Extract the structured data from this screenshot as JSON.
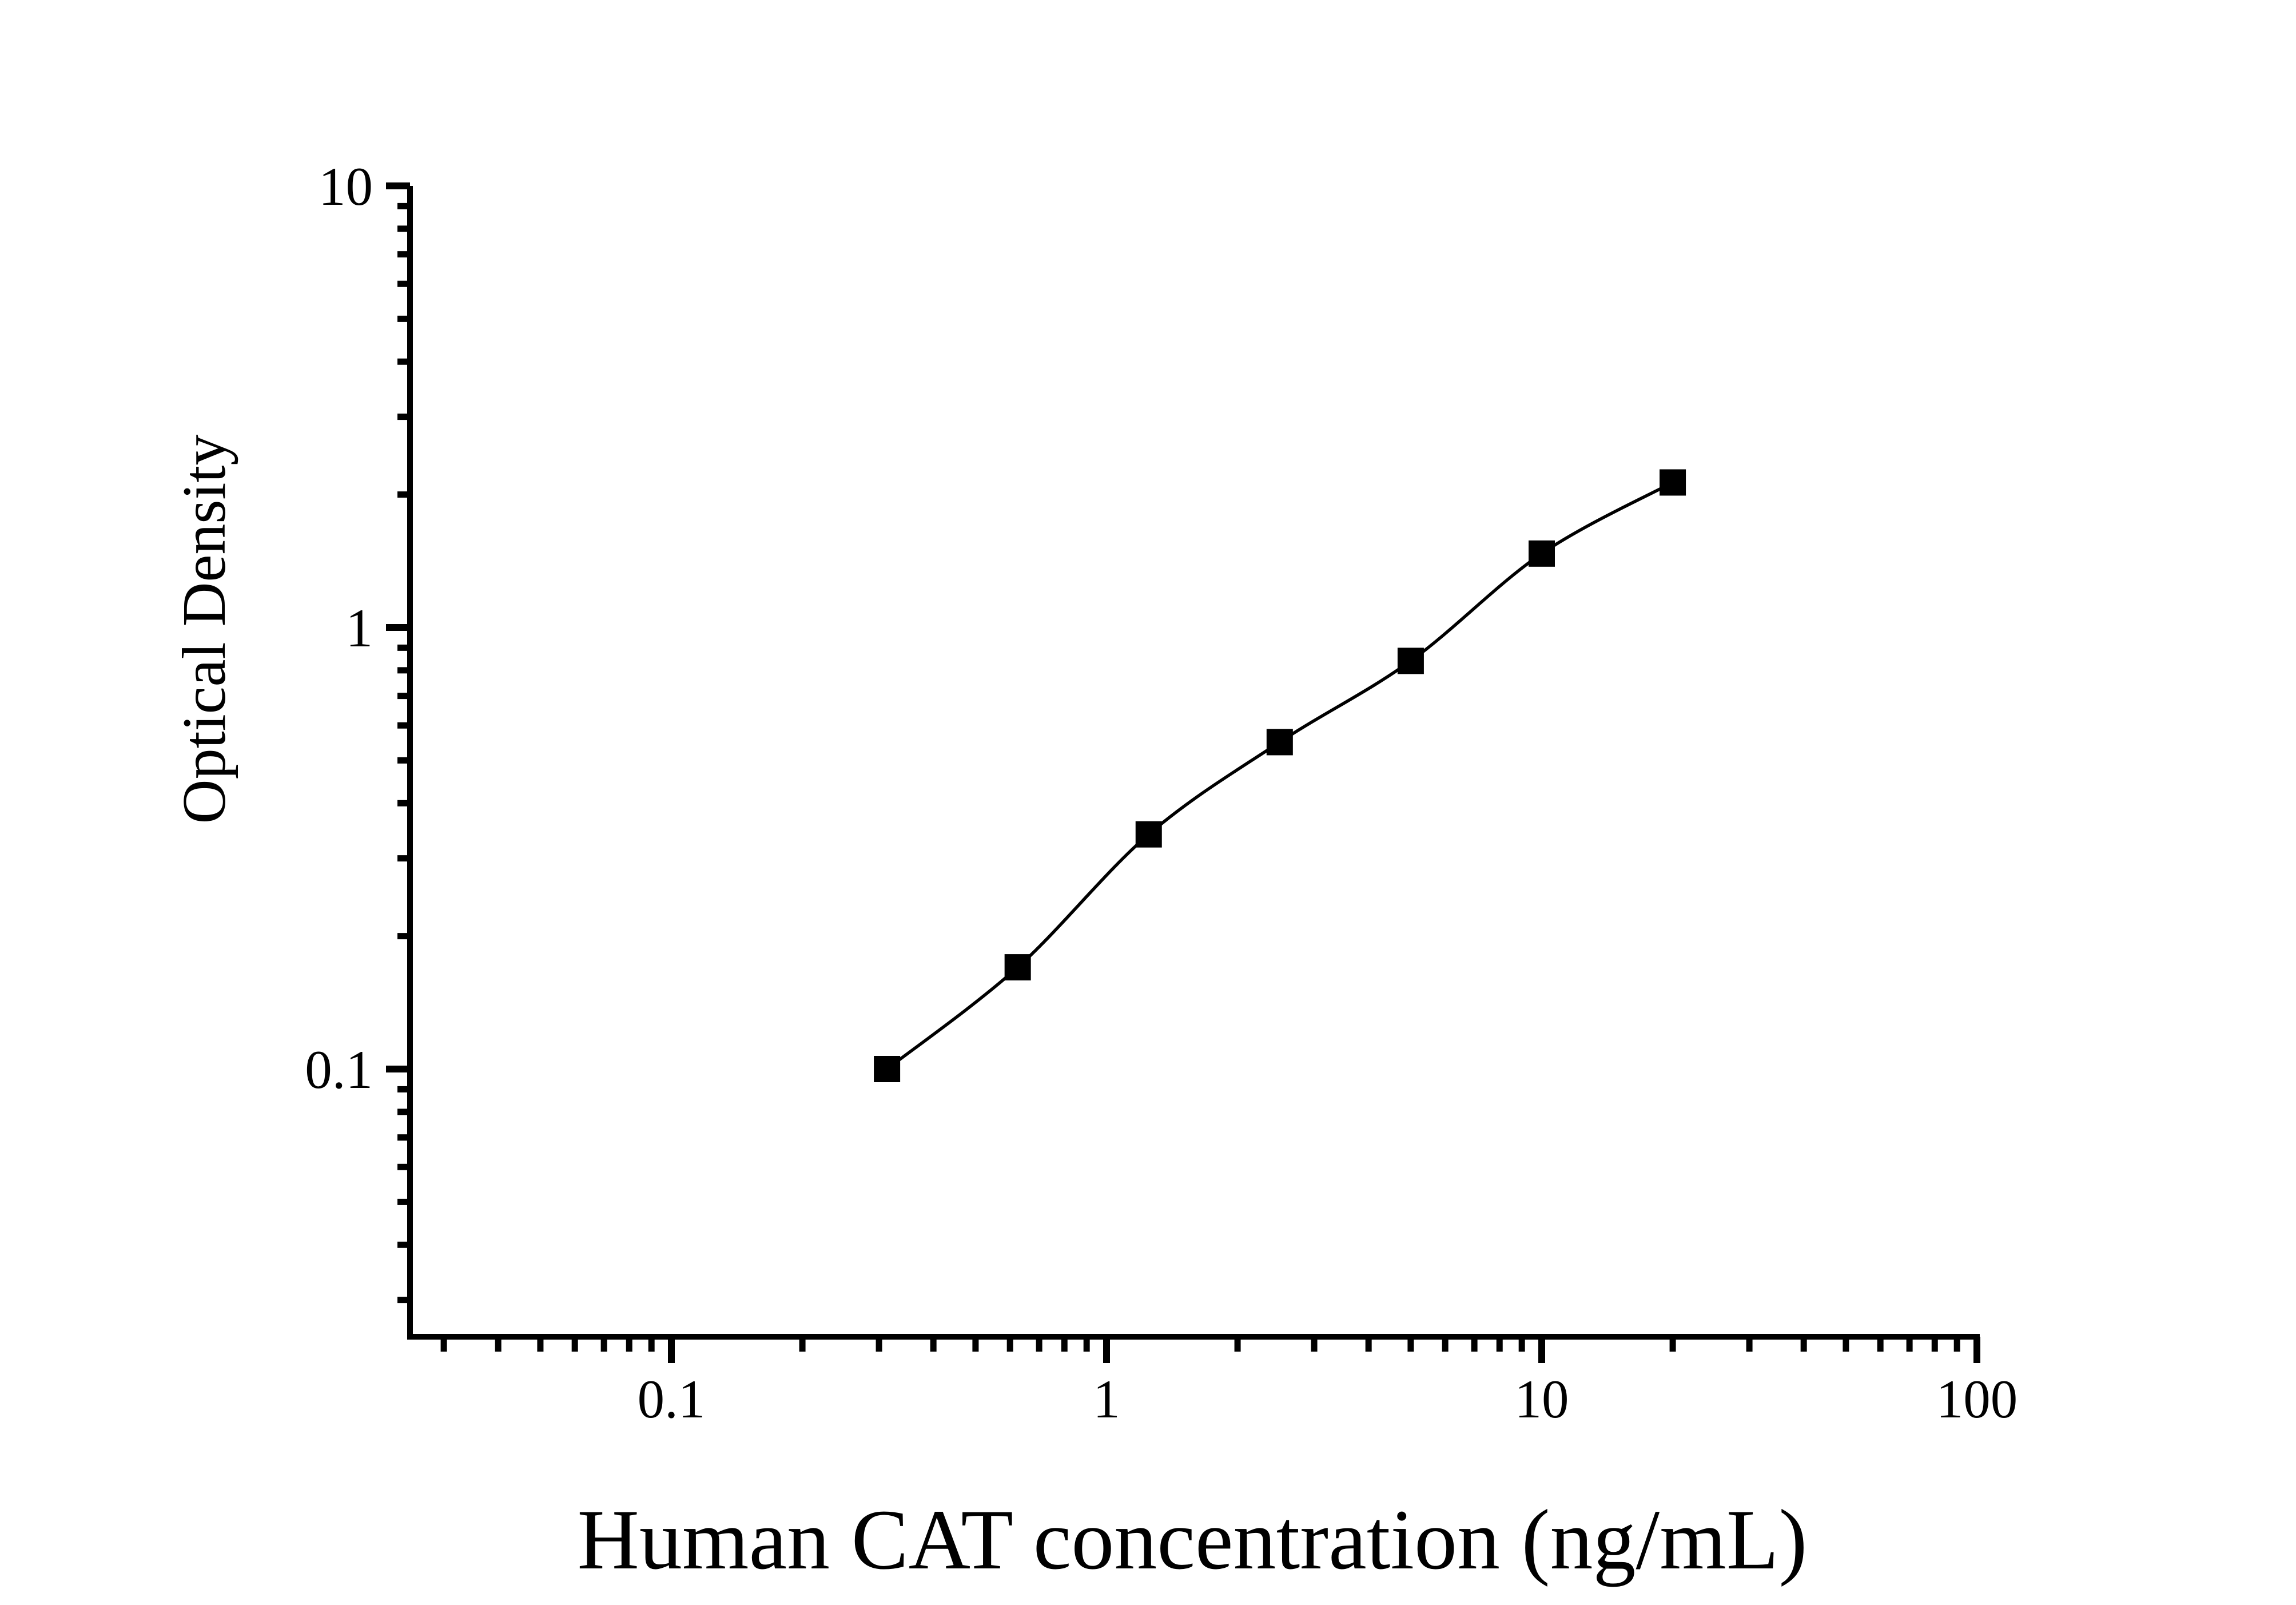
{
  "figure": {
    "background_color": "#ffffff",
    "foreground_color": "#000000"
  },
  "chart_data": {
    "type": "scatter",
    "title": "",
    "xlabel": "Human CAT concentration (ng/mL)",
    "ylabel": "Optical Density",
    "x_scale": "log",
    "y_scale": "log",
    "xlim": [
      0.025,
      100
    ],
    "ylim": [
      0.025,
      10
    ],
    "grid": false,
    "legend": "none",
    "marker": "filled-square",
    "marker_color": "#000000",
    "line_style": "smooth-fit-curve",
    "line_color": "#000000",
    "x_major_ticks": [
      {
        "value": 0.1,
        "label": "0.1"
      },
      {
        "value": 1,
        "label": "1"
      },
      {
        "value": 10,
        "label": "10"
      },
      {
        "value": 100,
        "label": "100"
      }
    ],
    "y_major_ticks": [
      {
        "value": 0.1,
        "label": "0.1"
      },
      {
        "value": 1,
        "label": "1"
      },
      {
        "value": 10,
        "label": "10"
      }
    ],
    "minor_ticks": "log-decade-2-to-9",
    "points": [
      {
        "x": 0.313,
        "y": 0.1
      },
      {
        "x": 0.625,
        "y": 0.17
      },
      {
        "x": 1.25,
        "y": 0.34
      },
      {
        "x": 2.5,
        "y": 0.55
      },
      {
        "x": 5,
        "y": 0.84
      },
      {
        "x": 10,
        "y": 1.47
      },
      {
        "x": 20,
        "y": 2.13
      }
    ]
  }
}
